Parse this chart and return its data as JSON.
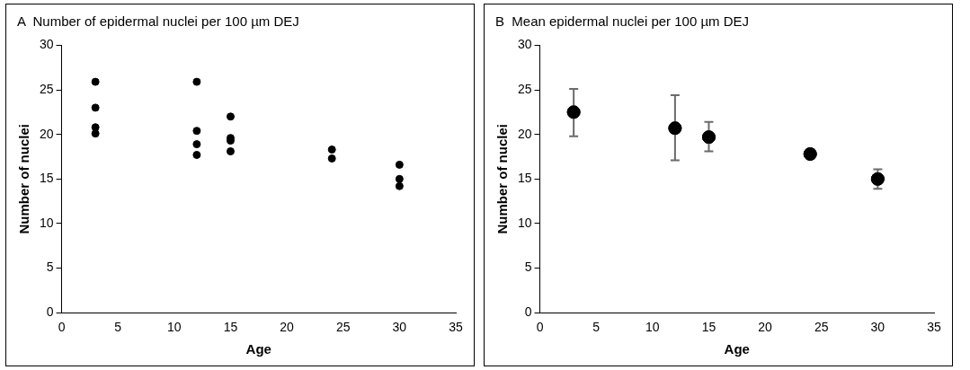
{
  "chart_data": [
    {
      "type": "scatter",
      "title": "A  Number of epidermal nuclei per 100 µm DEJ",
      "xlabel": "Age",
      "ylabel": "Number of nuclei",
      "x": [
        3,
        3,
        3,
        3,
        12,
        12,
        12,
        12,
        15,
        15,
        15,
        15,
        24,
        24,
        30,
        30,
        30
      ],
      "values": [
        25.9,
        23,
        20.8,
        20.1,
        25.9,
        20.4,
        18.9,
        17.7,
        22,
        19.6,
        19.3,
        18.1,
        18.3,
        17.3,
        16.6,
        15,
        14.2
      ],
      "color": "#000000",
      "marker": "circle",
      "xlim": [
        0,
        35
      ],
      "xticks": [
        0,
        5,
        10,
        15,
        20,
        25,
        30,
        35
      ],
      "ylim": [
        0,
        30
      ],
      "yticks": [
        0,
        5,
        10,
        15,
        20,
        25,
        30
      ],
      "grid": false,
      "legend": false
    },
    {
      "type": "scatter",
      "title": "B  Mean epidermal nuclei per 100 µm DEJ",
      "xlabel": "Age",
      "ylabel": "Number of nuclei",
      "x": [
        3,
        12,
        15,
        24,
        30
      ],
      "values": [
        22.5,
        20.7,
        19.7,
        17.8,
        15
      ],
      "errors": [
        [
          19.8,
          25.1
        ],
        [
          17.1,
          24.4
        ],
        [
          18.1,
          21.4
        ],
        [
          17.3,
          18.3
        ],
        [
          13.9,
          16.1
        ]
      ],
      "color": "#000000",
      "marker": "circle",
      "xlim": [
        0,
        35
      ],
      "xticks": [
        0,
        5,
        10,
        15,
        20,
        25,
        30,
        35
      ],
      "ylim": [
        0,
        30
      ],
      "yticks": [
        0,
        5,
        10,
        15,
        20,
        25,
        30
      ],
      "grid": false,
      "legend": false
    }
  ]
}
